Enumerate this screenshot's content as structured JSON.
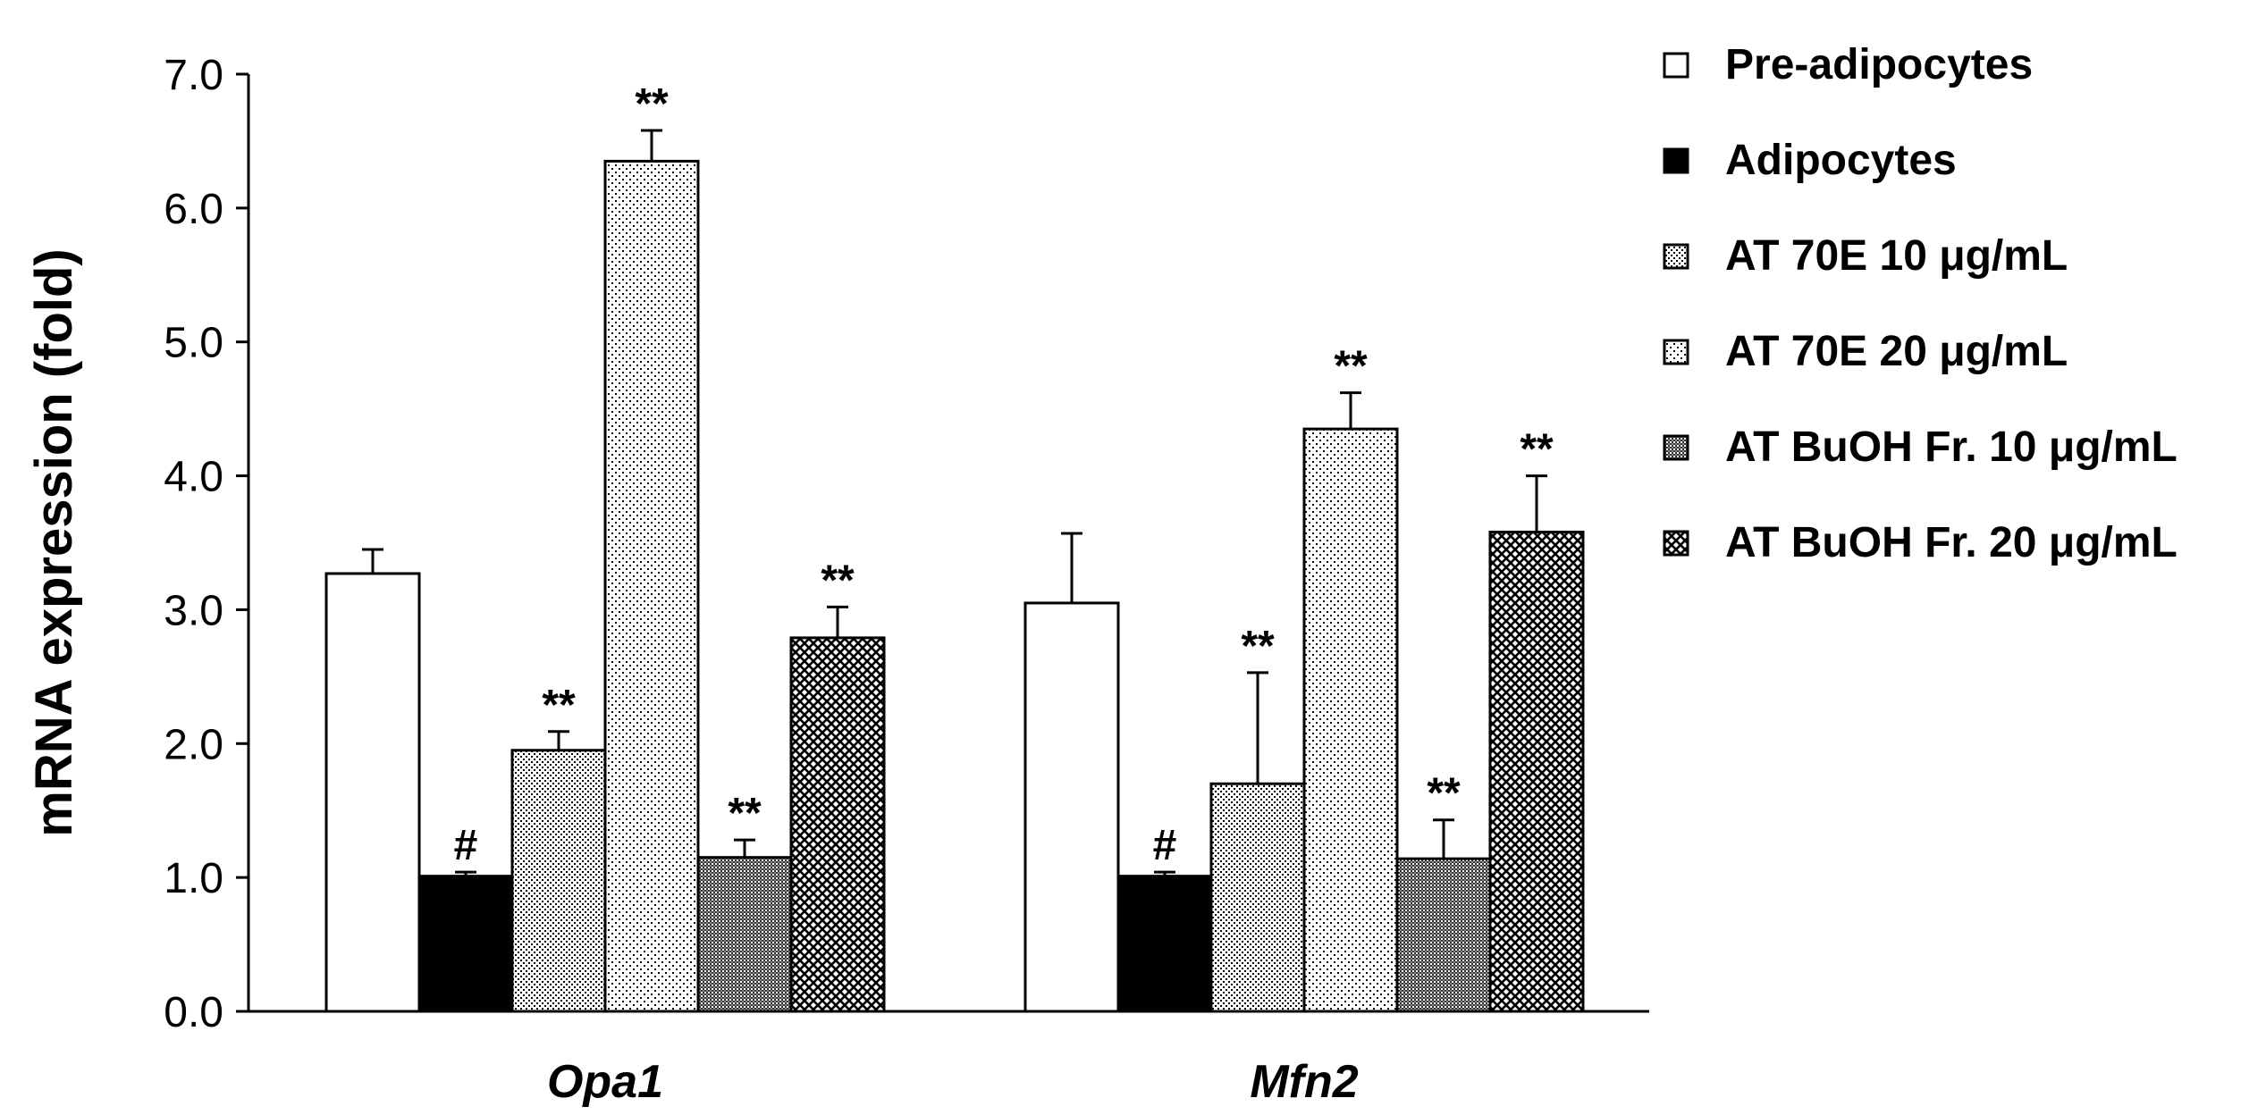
{
  "chart_data": {
    "type": "bar",
    "title": "",
    "xlabel": "",
    "ylabel": "mRNA expression (fold)",
    "ylim": [
      0,
      7
    ],
    "yticks": [
      "0.0",
      "1.0",
      "2.0",
      "3.0",
      "4.0",
      "5.0",
      "6.0",
      "7.0"
    ],
    "categories": [
      "Opa1",
      "Mfn2"
    ],
    "grid": false,
    "legend_position": "right",
    "series": [
      {
        "name": "Pre-adipocytes",
        "pattern": "white",
        "values": [
          3.27,
          3.05
        ],
        "errors": [
          0.18,
          0.52
        ],
        "labels": [
          "",
          ""
        ]
      },
      {
        "name": "Adipocytes",
        "pattern": "black",
        "values": [
          1.01,
          1.01
        ],
        "errors": [
          0.03,
          0.03
        ],
        "labels": [
          "#",
          "#"
        ]
      },
      {
        "name": "AT 70E 10 μg/mL",
        "pattern": "dots-dense",
        "values": [
          1.95,
          1.7
        ],
        "errors": [
          0.14,
          0.83
        ],
        "labels": [
          "**",
          "**"
        ]
      },
      {
        "name": "AT 70E 20 μg/mL",
        "pattern": "dots-sparse",
        "values": [
          6.35,
          4.35
        ],
        "errors": [
          0.23,
          0.27
        ],
        "labels": [
          "**",
          "**"
        ]
      },
      {
        "name": "AT BuOH Fr. 10 μg/mL",
        "pattern": "gray-checker",
        "values": [
          1.15,
          1.14
        ],
        "errors": [
          0.13,
          0.29
        ],
        "labels": [
          "**",
          "**"
        ]
      },
      {
        "name": "AT BuOH Fr. 20 μg/mL",
        "pattern": "dark-check",
        "values": [
          2.79,
          3.58
        ],
        "errors": [
          0.23,
          0.42
        ],
        "labels": [
          "**",
          "**"
        ]
      }
    ]
  }
}
